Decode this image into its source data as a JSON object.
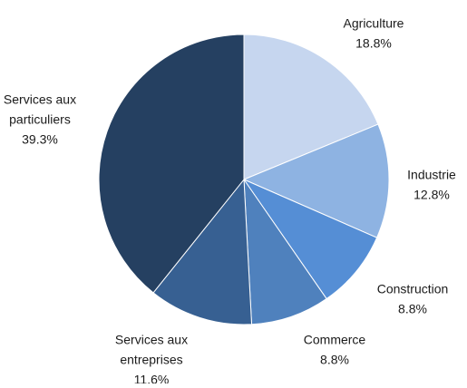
{
  "chart_data": {
    "type": "pie",
    "title": "",
    "slices": [
      {
        "label_lines": [
          "Agriculture"
        ],
        "value": 18.8,
        "value_label": "18.8%",
        "color": "#c6d6ef"
      },
      {
        "label_lines": [
          "Industrie"
        ],
        "value": 12.8,
        "value_label": "12.8%",
        "color": "#8eb3e2"
      },
      {
        "label_lines": [
          "Construction"
        ],
        "value": 8.8,
        "value_label": "8.8%",
        "color": "#558ed5"
      },
      {
        "label_lines": [
          "Commerce"
        ],
        "value": 8.8,
        "value_label": "8.8%",
        "color": "#4f81bd"
      },
      {
        "label_lines": [
          "Services aux",
          "entreprises"
        ],
        "value": 11.6,
        "value_label": "11.6%",
        "color": "#376092"
      },
      {
        "label_lines": [
          "Services aux",
          "particuliers"
        ],
        "value": 39.3,
        "value_label": "39.3%",
        "color": "#254061"
      }
    ],
    "start": "12 o'clock",
    "direction": "clockwise",
    "legend": "none"
  }
}
